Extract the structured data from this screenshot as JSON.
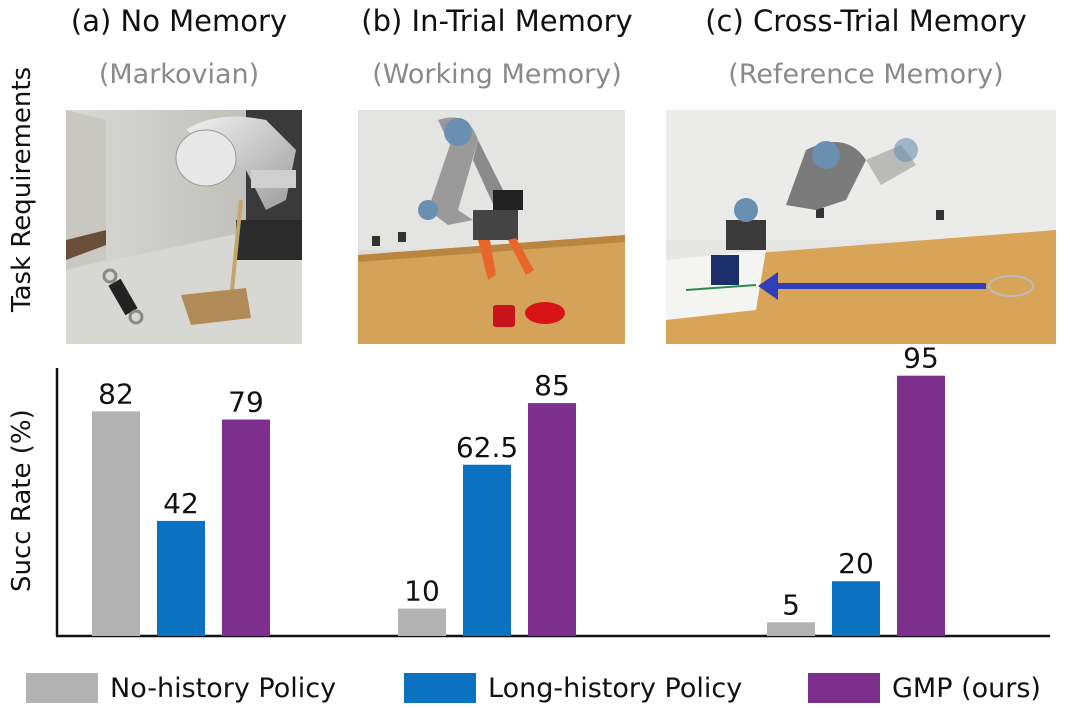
{
  "row_labels": {
    "top": "Task Requirements",
    "bottom": "Succ Rate (%)"
  },
  "columns": [
    {
      "title": "(a) No Memory",
      "subtitle": "(Markovian)"
    },
    {
      "title": "(b)  In-Trial Memory",
      "subtitle": "(Working Memory)"
    },
    {
      "title": "(c)  Cross-Trial Memory",
      "subtitle": "(Reference Memory)"
    }
  ],
  "colors": {
    "no_history": "#b3b3b3",
    "long_history": "#0a72c1",
    "gmp": "#7d2f8e"
  },
  "chart_data": {
    "type": "bar",
    "categories": [
      "(a) No Memory",
      "(b)  In-Trial Memory",
      "(c)  Cross-Trial Memory"
    ],
    "series": [
      {
        "name": "No-history Policy",
        "values": [
          82,
          10,
          5
        ],
        "labels": [
          "82",
          "10",
          "5"
        ]
      },
      {
        "name": "Long-history Policy",
        "values": [
          42,
          62.5,
          20
        ],
        "labels": [
          "42",
          "62.5",
          "20"
        ]
      },
      {
        "name": "GMP (ours)",
        "values": [
          79,
          85,
          95
        ],
        "labels": [
          "79",
          "85",
          "95"
        ]
      }
    ],
    "ylabel": "Succ Rate (%)",
    "ylim": [
      0,
      100
    ],
    "grid": false,
    "legend_placement": "bottom"
  }
}
